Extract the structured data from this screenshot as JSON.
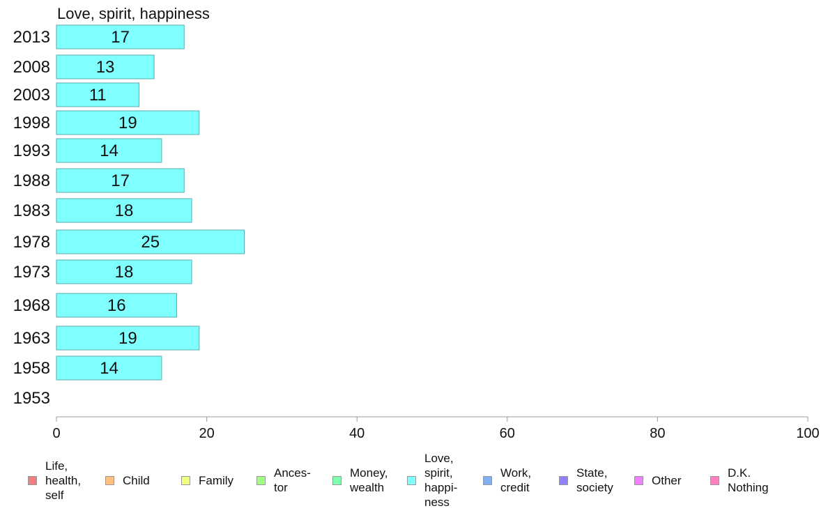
{
  "chart_data": {
    "type": "bar",
    "orientation": "horizontal",
    "title": "Love, spirit, happiness",
    "categories": [
      "2013",
      "2008",
      "2003",
      "1998",
      "1993",
      "1988",
      "1983",
      "1978",
      "1973",
      "1968",
      "1963",
      "1958",
      "1953"
    ],
    "values": [
      17,
      13,
      11,
      19,
      14,
      17,
      18,
      25,
      18,
      16,
      19,
      14,
      null
    ],
    "bar_color": "#80ffff",
    "bar_border": "#5aabb0",
    "xlim": [
      0,
      100
    ],
    "xticks": [
      "0",
      "20",
      "40",
      "60",
      "80",
      "100"
    ],
    "xlabel": "",
    "ylabel": "",
    "grid": false,
    "legend_position": "bottom"
  },
  "legend": [
    {
      "label": "Life,\nhealth,\nself",
      "color": "#f08080"
    },
    {
      "label": "Child",
      "color": "#ffc080"
    },
    {
      "label": "Family",
      "color": "#f0ff80"
    },
    {
      "label": "Ances-\ntor",
      "color": "#a0ff80"
    },
    {
      "label": "Money,\nwealth",
      "color": "#80ffb0"
    },
    {
      "label": "Love,\nspirit,\nhappi-\nness",
      "color": "#80ffff"
    },
    {
      "label": "Work,\ncredit",
      "color": "#80b0f0"
    },
    {
      "label": "State,\nsociety",
      "color": "#9080ff"
    },
    {
      "label": "Other",
      "color": "#f080ff"
    },
    {
      "label": "D.K.\nNothing",
      "color": "#ff80c0"
    }
  ]
}
